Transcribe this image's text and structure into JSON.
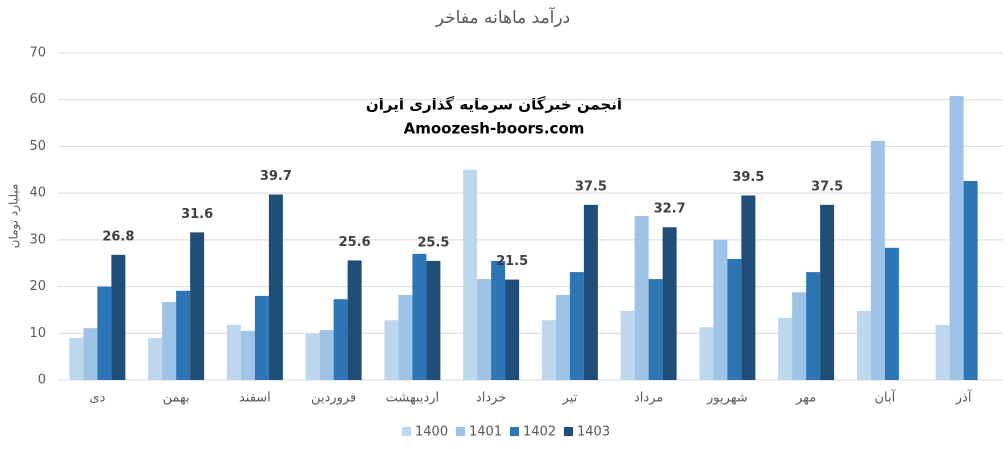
{
  "chart_data": {
    "type": "bar",
    "title": "درآمد ماهانه مفاخر",
    "y_label": "میلیارد تومان",
    "annotations": [
      "انجمن خبرگان سرمایه گذاری ایران",
      "Amoozesh-boors.com"
    ],
    "categories": [
      "دی",
      "بهمن",
      "اسفند",
      "فروردین",
      "اردیبهشت",
      "خرداد",
      "تیر",
      "مرداد",
      "شهریور",
      "مهر",
      "آبان",
      "آذر"
    ],
    "series": [
      {
        "name": "1400",
        "color": "#bdd7ee",
        "values": [
          9,
          9,
          11.8,
          9.9,
          12.8,
          45,
          12.8,
          14.8,
          11.3,
          13.3,
          14.8,
          11.8
        ]
      },
      {
        "name": "1401",
        "color": "#9dc3e6",
        "values": [
          11.1,
          16.7,
          10.5,
          10.7,
          18.2,
          21.6,
          18.2,
          35.1,
          30,
          18.8,
          51.2,
          60.8
        ]
      },
      {
        "name": "1402",
        "color": "#2e75b6",
        "values": [
          20,
          19.1,
          18,
          17.3,
          27,
          25.5,
          23.1,
          21.6,
          25.9,
          23.1,
          28.3,
          42.6
        ]
      },
      {
        "name": "1403",
        "color": "#1f4e79",
        "data_labels": true,
        "values": [
          26.8,
          31.6,
          39.7,
          25.6,
          25.5,
          21.5,
          37.5,
          32.7,
          39.5,
          37.5,
          null,
          null
        ]
      }
    ],
    "ylim": [
      0,
      70
    ],
    "yticks": [
      0,
      10,
      20,
      30,
      40,
      50,
      60,
      70
    ],
    "grid": true,
    "legend": "bottom"
  }
}
